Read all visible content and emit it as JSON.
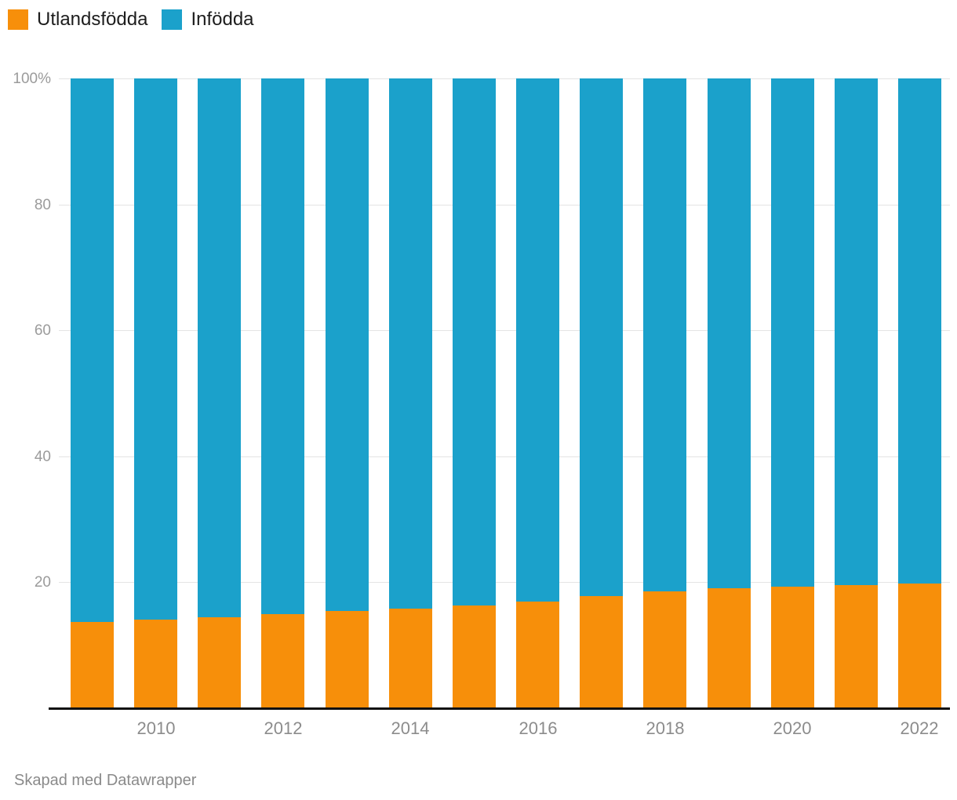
{
  "legend": {
    "items": [
      {
        "id": "utlandsfodda",
        "label": "Utlandsfödda",
        "color": "#F78F0A"
      },
      {
        "id": "infodda",
        "label": "Infödda",
        "color": "#1BA1CB"
      }
    ]
  },
  "chart_data": {
    "type": "bar",
    "stacked": true,
    "percent": true,
    "categories": [
      2009,
      2010,
      2011,
      2012,
      2013,
      2014,
      2015,
      2016,
      2017,
      2018,
      2019,
      2020,
      2021,
      2022
    ],
    "series": [
      {
        "name": "Utlandsfödda",
        "color": "#F78F0A",
        "values": [
          13.7,
          14.1,
          14.5,
          14.9,
          15.4,
          15.8,
          16.3,
          16.9,
          17.8,
          18.5,
          19.0,
          19.3,
          19.5,
          19.8
        ]
      },
      {
        "name": "Infödda",
        "color": "#1BA1CB",
        "values": [
          86.3,
          85.9,
          85.5,
          85.1,
          84.6,
          84.2,
          83.7,
          83.1,
          82.2,
          81.5,
          81.0,
          80.7,
          80.5,
          80.2
        ]
      }
    ],
    "y_axis": {
      "range": [
        0,
        100
      ],
      "ticks": [
        20,
        40,
        60,
        80,
        100
      ],
      "tick_labels": [
        "20",
        "40",
        "60",
        "80",
        "100%"
      ],
      "grid": true
    },
    "x_axis": {
      "tick_labels": [
        "2010",
        "2012",
        "2014",
        "2016",
        "2018",
        "2020",
        "2022"
      ],
      "labeled_categories": [
        2010,
        2012,
        2014,
        2016,
        2018,
        2020,
        2022
      ]
    },
    "legend_position": "top-left"
  },
  "footer": {
    "credit": "Skapad med Datawrapper"
  },
  "colors": {
    "grid": "#e4e4e4",
    "axis_line": "#111111",
    "tick_text": "#9b9b9b",
    "legend_text": "#1d1d1d"
  }
}
